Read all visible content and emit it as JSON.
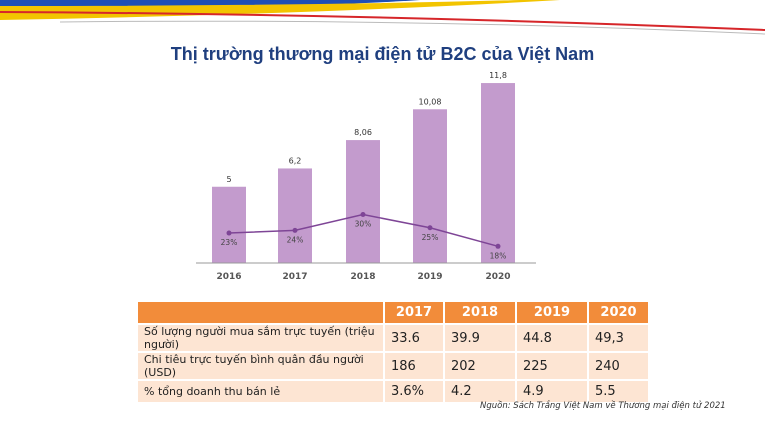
{
  "title": "Thị trường thương mại điện tử B2C của Việt Nam",
  "chart_data": {
    "type": "bar",
    "categories": [
      "2016",
      "2017",
      "2018",
      "2019",
      "2020"
    ],
    "series": [
      {
        "values": [
          5,
          6.2,
          8.06,
          10.08,
          11.8
        ],
        "labels": [
          "5",
          "6,2",
          "8,06",
          "10,08",
          "11,8"
        ],
        "color": "#c39bcd"
      },
      {
        "type": "line",
        "values": [
          23,
          24,
          30,
          25,
          18
        ],
        "labels": [
          "23%",
          "24%",
          "30%",
          "25%",
          "18%"
        ],
        "color": "#7e4596"
      }
    ],
    "ylim": [
      0,
      12
    ]
  },
  "table": {
    "headers": [
      "",
      "2017",
      "2018",
      "2019",
      "2020"
    ],
    "rows": [
      [
        "Số lượng người mua sắm trực tuyến (triệu người)",
        "33.6",
        "39.9",
        "44.8",
        "49,3"
      ],
      [
        "Chi tiêu trực tuyến bình quân đầu người (USD)",
        "186",
        "202",
        "225",
        "240"
      ],
      [
        "% tổng doanh thu bán lẻ",
        "3.6%",
        "4.2",
        "4.9",
        "5.5"
      ]
    ]
  },
  "source": "Nguồn: Sách Trắng Việt Nam về Thương mại điện tử 2021",
  "colors": {
    "title": "#1f3f7f",
    "table_header": "#f28c3a",
    "table_cell": "#fde5d3",
    "swoosh_blue": "#1e4fb5",
    "swoosh_yellow": "#f2c400",
    "swoosh_red": "#d6262a"
  }
}
